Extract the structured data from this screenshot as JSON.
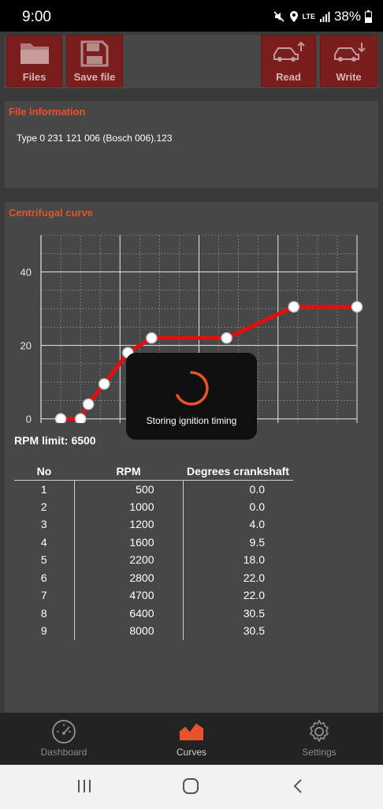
{
  "status": {
    "time": "9:00",
    "network": "LTE",
    "battery": "38%"
  },
  "toolbar": {
    "files_label": "Files",
    "save_label": "Save file",
    "read_label": "Read",
    "write_label": "Write"
  },
  "file_info": {
    "title": "File information",
    "text": "Type 0 231 121 006 (Bosch 006).123"
  },
  "curve": {
    "title": "Centrifugal curve",
    "rpm_limit_label": "RPM limit:",
    "rpm_limit_value": "6500"
  },
  "chart_data": {
    "type": "line",
    "x": [
      500,
      1000,
      1200,
      1600,
      2200,
      2800,
      4700,
      6400,
      8000
    ],
    "y": [
      0.0,
      0.0,
      4.0,
      9.5,
      18.0,
      22.0,
      22.0,
      30.5,
      30.5
    ],
    "xlim": [
      0,
      8000
    ],
    "ylim": [
      -2,
      50
    ],
    "xticks": [
      "0",
      "2000",
      "4000",
      "6000",
      "8000"
    ],
    "yticks": [
      "0",
      "20",
      "40"
    ],
    "grid": true,
    "color": "#e01010"
  },
  "table": {
    "headers": [
      "No",
      "RPM",
      "Degrees crankshaft"
    ],
    "rows": [
      [
        "1",
        "500",
        "0.0"
      ],
      [
        "2",
        "1000",
        "0.0"
      ],
      [
        "3",
        "1200",
        "4.0"
      ],
      [
        "4",
        "1600",
        "9.5"
      ],
      [
        "5",
        "2200",
        "18.0"
      ],
      [
        "6",
        "2800",
        "22.0"
      ],
      [
        "7",
        "4700",
        "22.0"
      ],
      [
        "8",
        "6400",
        "30.5"
      ],
      [
        "9",
        "8000",
        "30.5"
      ]
    ]
  },
  "toast": {
    "message": "Storing ignition timing"
  },
  "nav": {
    "dashboard_label": "Dashboard",
    "curves_label": "Curves",
    "settings_label": "Settings",
    "active": "Curves",
    "active_color": "#e8532a"
  }
}
